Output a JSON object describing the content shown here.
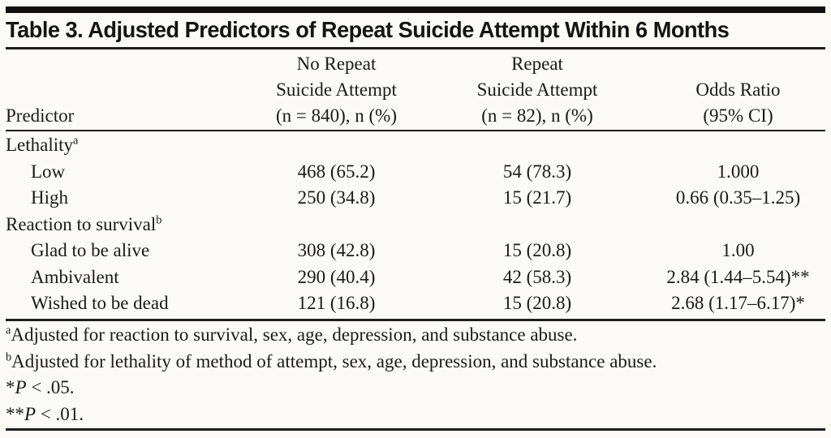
{
  "title": "Table 3. Adjusted Predictors of Repeat Suicide Attempt Within 6 Months",
  "table": {
    "header": {
      "col1": {
        "line3": "Predictor"
      },
      "col2": {
        "line1": "No Repeat",
        "line2": "Suicide Attempt",
        "line3": "(n = 840), n (%)"
      },
      "col3": {
        "line1": "Repeat",
        "line2": "Suicide Attempt",
        "line3": "(n = 82), n (%)"
      },
      "col4": {
        "line2": "Odds Ratio",
        "line3": "(95% CI)"
      }
    },
    "rows": [
      {
        "kind": "group",
        "label": "Lethality",
        "sup": "a"
      },
      {
        "kind": "item",
        "label": "Low",
        "no_repeat": "468 (65.2)",
        "repeat": "54 (78.3)",
        "odds": "1.000"
      },
      {
        "kind": "item",
        "label": "High",
        "no_repeat": "250 (34.8)",
        "repeat": "15 (21.7)",
        "odds": "0.66 (0.35–1.25)"
      },
      {
        "kind": "group",
        "label": "Reaction to survival",
        "sup": "b"
      },
      {
        "kind": "item",
        "label": "Glad to be alive",
        "no_repeat": "308 (42.8)",
        "repeat": "15 (20.8)",
        "odds": "1.00"
      },
      {
        "kind": "item",
        "label": "Ambivalent",
        "no_repeat": "290 (40.4)",
        "repeat": "42 (58.3)",
        "odds": "2.84 (1.44–5.54)**"
      },
      {
        "kind": "item",
        "label": "Wished to be dead",
        "no_repeat": "121 (16.8)",
        "repeat": "15 (20.8)",
        "odds": "2.68 (1.17–6.17)*"
      }
    ]
  },
  "footnotes": {
    "a": {
      "sup": "a",
      "text": "Adjusted for reaction to survival, sex, age, depression, and substance abuse."
    },
    "b": {
      "sup": "b",
      "text": "Adjusted for lethality of method of attempt, sex, age, depression, and substance abuse."
    },
    "p05": {
      "stars": "*",
      "p": "P",
      "rest": " < .05."
    },
    "p01": {
      "stars": "**",
      "p": "P",
      "rest": " < .01."
    }
  },
  "colors": {
    "background": "#fbfaf6",
    "text": "#1a1a1a",
    "rule": "#1e1e1e",
    "title_bar": "#101010"
  }
}
